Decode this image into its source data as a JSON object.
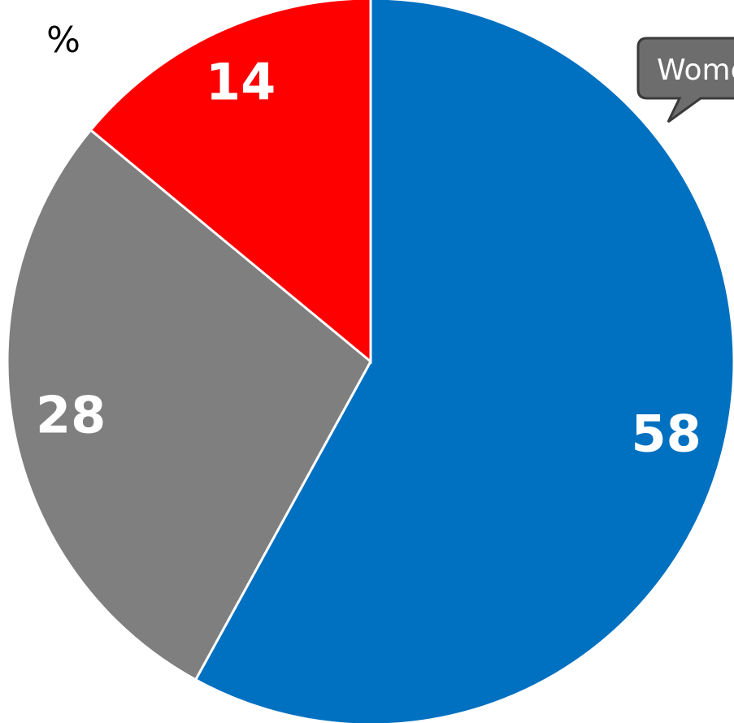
{
  "chart_data": {
    "type": "pie",
    "unit_label": "%",
    "callout": "Women",
    "categories": [
      null,
      null,
      null
    ],
    "values": [
      58,
      28,
      14
    ],
    "colors": [
      "#0070c0",
      "#7f7f7f",
      "#ff0000"
    ]
  }
}
